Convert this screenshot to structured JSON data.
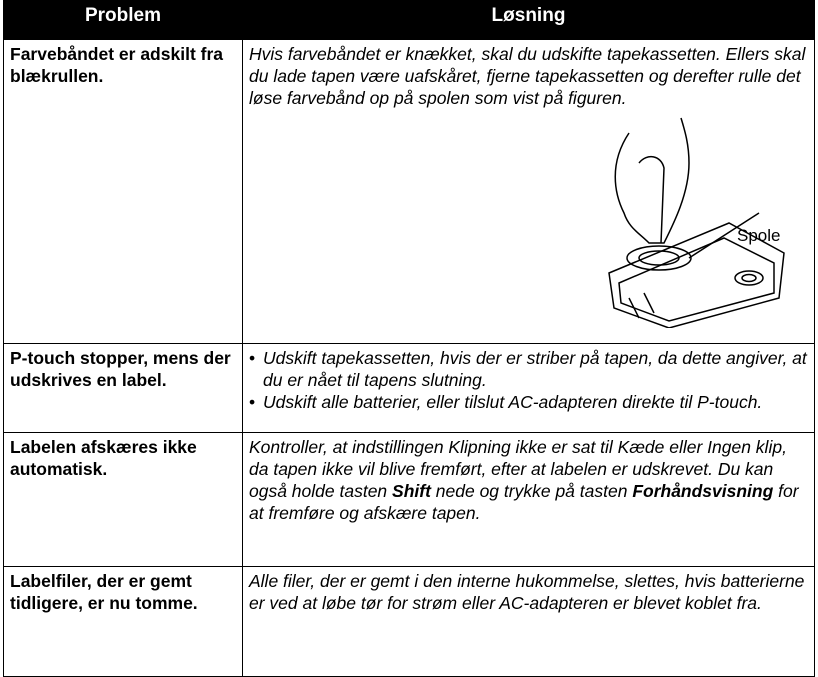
{
  "table": {
    "header": [
      "Problem",
      "Løsning"
    ],
    "rows": [
      {
        "problem": "Farvebåndet er adskilt fra blækrullen.",
        "solution": [
          "Hvis farvebåndet er knækket, skal du udskifte tapekassetten. Ellers skal du lade tapen være uafskåret, fjerne tapekassetten og derefter rulle det løse farvebånd op på spolen som vist på figuren."
        ],
        "figure_label": "Spole"
      },
      {
        "problem": "P-touch stopper, mens der udskrives en label.",
        "bullets": [
          "Udskift tapekassetten, hvis der er striber på tapen, da dette angiver, at du er nået til tapens slutning.",
          "Udskift alle batterier, eller tilslut AC-adapteren direkte til P-touch."
        ]
      },
      {
        "problem": "Labelen afskæres ikke automatisk.",
        "solution": [
          "Kontroller, at indstillingen Klipning ikke er sat til Kæde eller Ingen klip, da tapen ikke vil blive fremført, efter at labelen er udskrevet. Du kan også holde tasten ",
          "Shift",
          " nede og trykke på tasten ",
          "Forhåndsvisning",
          " for at fremføre og afskære tapen."
        ]
      },
      {
        "problem": "Labelfiler, der er gemt tidligere, er nu tomme.",
        "solution": [
          "Alle filer, der er gemt i den interne hukommelse, slettes, hvis batterierne er ved at løbe tør for strøm eller AC-adapteren er blevet koblet fra."
        ]
      }
    ]
  }
}
